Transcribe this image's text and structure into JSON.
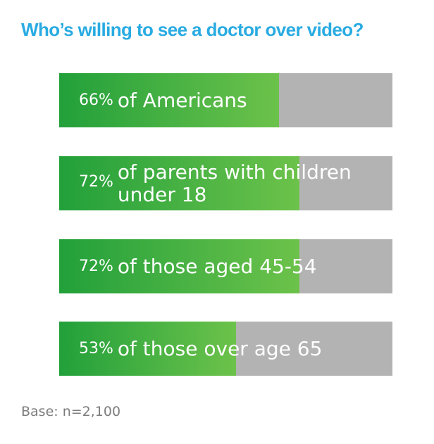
{
  "chart_data": {
    "type": "bar",
    "orientation": "horizontal",
    "title": "Who’s willing to see a doctor over video?",
    "categories": [
      "of Americans",
      "of parents with children under 18",
      "of those aged 45-54",
      "of those over age 65"
    ],
    "category_lines": [
      [
        "of Americans"
      ],
      [
        "of parents with children",
        "under 18"
      ],
      [
        "of those aged 45-54"
      ],
      [
        "of those over age 65"
      ]
    ],
    "value_labels": [
      "66%",
      "72%",
      "72%",
      "53%"
    ],
    "values": [
      66,
      72,
      72,
      53
    ],
    "xlim": [
      0,
      100
    ],
    "footnote": "Base: n=2,100",
    "grid": false,
    "legend": "none",
    "colors": {
      "title": "#29abe2",
      "fill": "#4bb344",
      "remainder": "#b3b3b3",
      "label": "#ffffff",
      "footnote": "#7c7c7c"
    }
  }
}
